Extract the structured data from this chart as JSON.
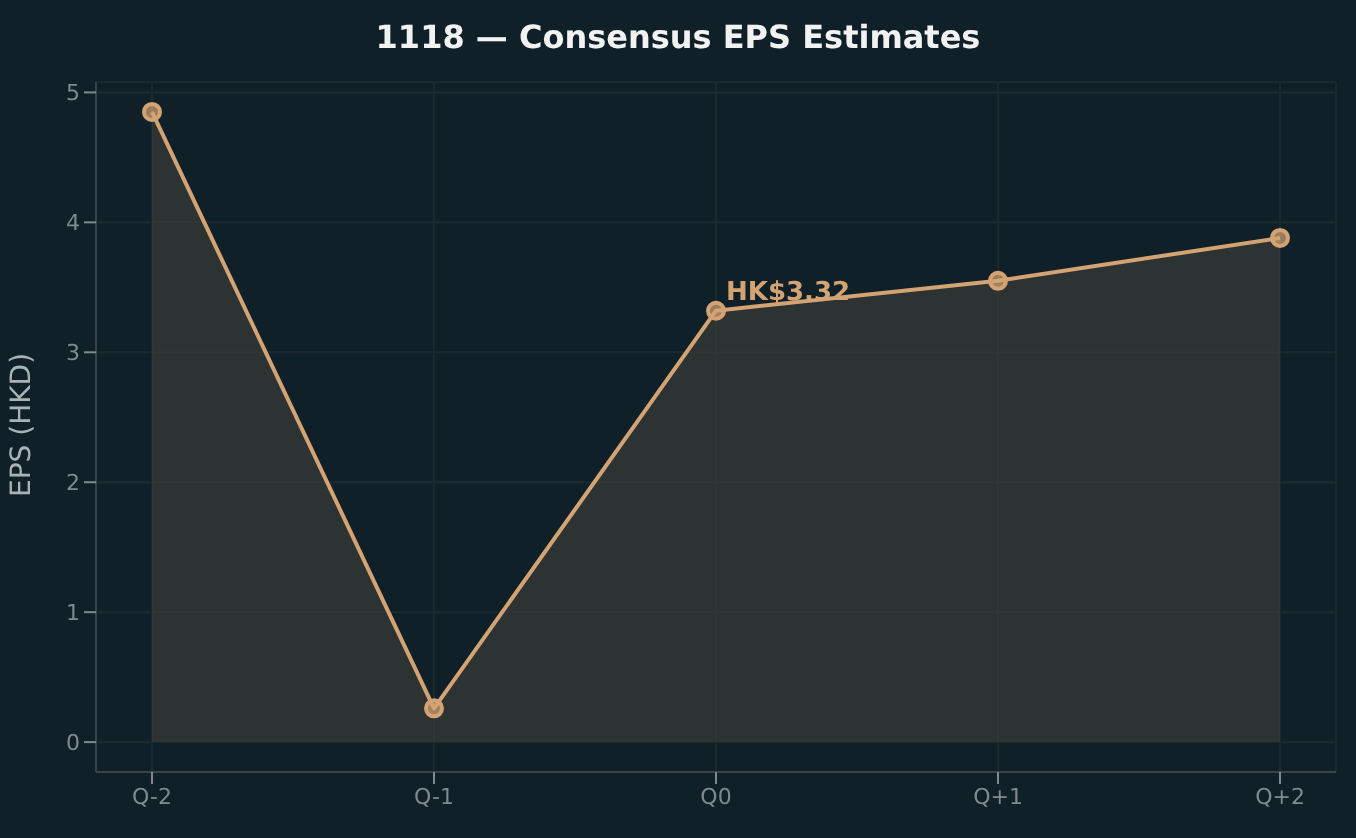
{
  "chart_data": {
    "type": "area",
    "title": "1118 — Consensus EPS Estimates",
    "ylabel": "EPS (HKD)",
    "categories": [
      "Q-2",
      "Q-1",
      "Q0",
      "Q+1",
      "Q+2"
    ],
    "series": [
      {
        "color": "#d4a373",
        "values": [
          4.85,
          0.26,
          3.32,
          3.55,
          3.88
        ]
      }
    ],
    "ylim": [
      -0.23,
      5.08
    ],
    "yticks": [
      0,
      1,
      2,
      3,
      4,
      5
    ],
    "grid": true,
    "marker": "circle",
    "line_style": "solid",
    "annotations": [
      {
        "text": "HK$3.32",
        "x": "Q0",
        "y": 3.32
      }
    ]
  }
}
